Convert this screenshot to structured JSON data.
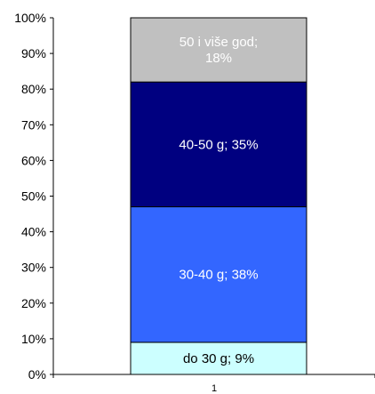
{
  "chart_data": {
    "type": "bar",
    "stacked": true,
    "percent_stacked": true,
    "categories": [
      "1"
    ],
    "series": [
      {
        "name": "do 30 g",
        "values": [
          9
        ],
        "label": "do 30 g; 9%",
        "color": "#ccffff",
        "label_color": "#000000"
      },
      {
        "name": "30-40 g",
        "values": [
          38
        ],
        "label": "30-40 g; 38%",
        "color": "#3366ff",
        "label_color": "#ffffff"
      },
      {
        "name": "40-50 g",
        "values": [
          35
        ],
        "label": "40-50 g; 35%",
        "color": "#000080",
        "label_color": "#ffffff"
      },
      {
        "name": "50 i više god;",
        "values": [
          18
        ],
        "label_lines": [
          "50 i više god;",
          "18%"
        ],
        "color": "#c0c0c0",
        "label_color": "#ffffff"
      }
    ],
    "ylim": [
      0,
      100
    ],
    "yticks": [
      "0%",
      "10%",
      "20%",
      "30%",
      "40%",
      "50%",
      "60%",
      "70%",
      "80%",
      "90%",
      "100%"
    ],
    "title": "",
    "xlabel": "",
    "ylabel": "",
    "grid": false,
    "legend": "none"
  }
}
